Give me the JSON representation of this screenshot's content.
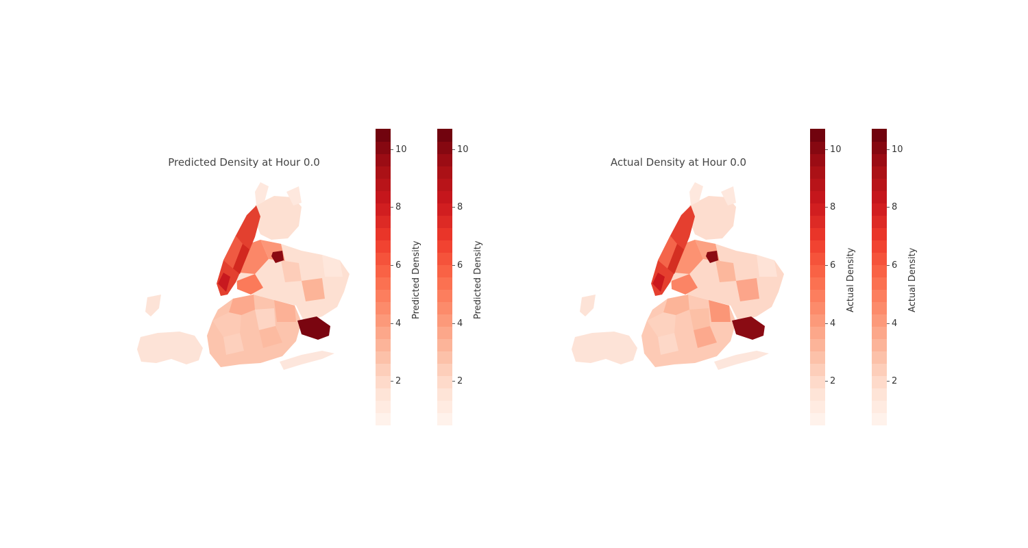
{
  "panels": [
    {
      "title": "Predicted Density at Hour 0.0",
      "colorbars": [
        {
          "label": "Predicted Density",
          "ticks": [
            "2",
            "4",
            "6",
            "8",
            "10"
          ]
        },
        {
          "label": "Predicted Density",
          "ticks": [
            "2",
            "4",
            "6",
            "8",
            "10"
          ]
        }
      ]
    },
    {
      "title": "Actual Density at Hour 0.0",
      "colorbars": [
        {
          "label": "Actual Density",
          "ticks": [
            "2",
            "4",
            "6",
            "8",
            "10"
          ]
        },
        {
          "label": "Actual Density",
          "ticks": [
            "2",
            "4",
            "6",
            "8",
            "10"
          ]
        }
      ]
    }
  ],
  "colormap": {
    "name": "Reds",
    "range": [
      0.5,
      10.7
    ],
    "tick_values": [
      2,
      4,
      6,
      8,
      10
    ],
    "colors": [
      "#fff5f0",
      "#fee0d2",
      "#fcbba1",
      "#fc9272",
      "#fb6a4a",
      "#ef3b2c",
      "#cb181d",
      "#a50f15",
      "#67000d"
    ]
  }
}
